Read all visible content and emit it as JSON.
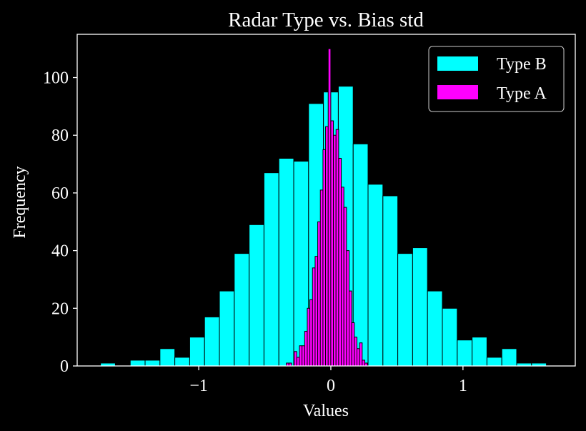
{
  "chart_data": {
    "type": "bar",
    "title": "Radar Type vs. Bias std",
    "xlabel": "Values",
    "ylabel": "Frequency",
    "xlim": [
      -1.92,
      1.85
    ],
    "ylim": [
      0,
      115
    ],
    "xticks": [
      {
        "value": -1,
        "label": "−1"
      },
      {
        "value": 0,
        "label": "0"
      },
      {
        "value": 1,
        "label": "1"
      }
    ],
    "yticks": [
      {
        "value": 0,
        "label": "0"
      },
      {
        "value": 20,
        "label": "20"
      },
      {
        "value": 40,
        "label": "40"
      },
      {
        "value": 60,
        "label": "60"
      },
      {
        "value": 80,
        "label": "80"
      },
      {
        "value": 100,
        "label": "100"
      }
    ],
    "grid": false,
    "legend_position": "top-right",
    "background": "#000000",
    "series": [
      {
        "name": "Type B",
        "color": "#00ffff",
        "bin_start": -1.7435,
        "bin_width": 0.1125,
        "counts": [
          1,
          0,
          2,
          2,
          6,
          3,
          10,
          17,
          26,
          39,
          49,
          67,
          72,
          71,
          91,
          95,
          97,
          77,
          63,
          59,
          39,
          41,
          26,
          20,
          9,
          10,
          3,
          6,
          1,
          1
        ]
      },
      {
        "name": "Type A",
        "color": "#ff00ff",
        "bin_start": -0.337,
        "bin_width": 0.0198,
        "counts": [
          1,
          1,
          0,
          5,
          3,
          7,
          7,
          12,
          20,
          23,
          34,
          38,
          50,
          61,
          75,
          83,
          110,
          85,
          80,
          82,
          72,
          62,
          55,
          40,
          26,
          15,
          10,
          6,
          8,
          2,
          1
        ]
      }
    ]
  }
}
